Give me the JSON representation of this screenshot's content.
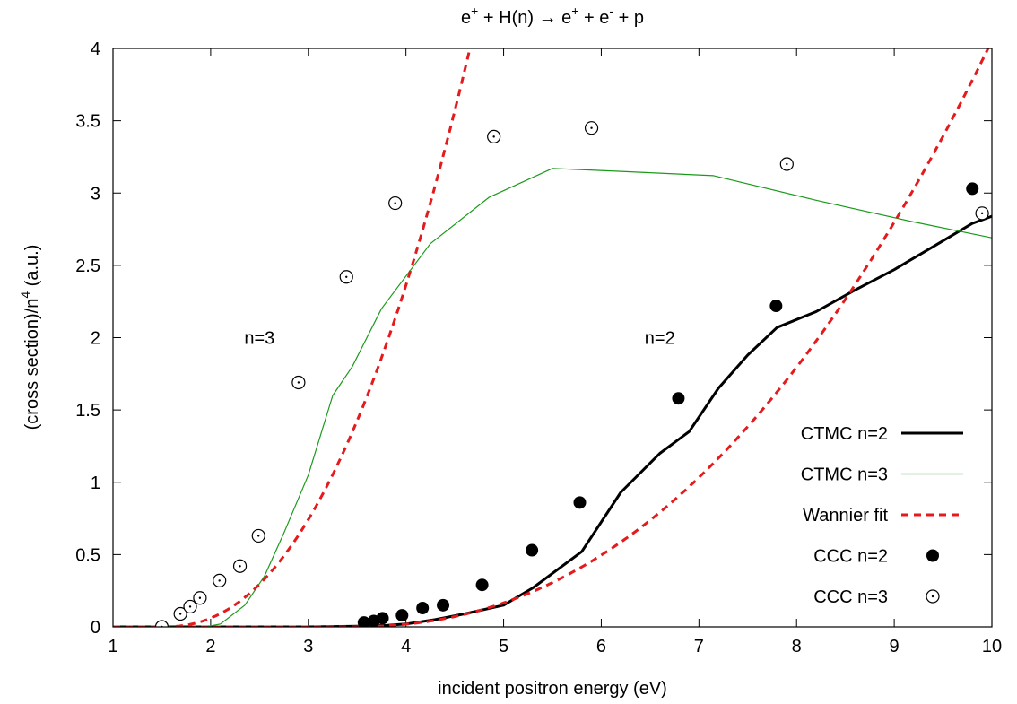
{
  "chart_data": {
    "type": "scatter",
    "title": {
      "base": "e",
      "sup1": "+",
      "part2": " + H(n) → e",
      "sup2": "+",
      "part3": " + e",
      "sup3": "-",
      "part4": " + p"
    },
    "xlabel": "incident positron energy (eV)",
    "ylabel": {
      "main": "(cross section)/n",
      "sup": "4",
      "tail": " (a.u.)"
    },
    "xlim": [
      1,
      10
    ],
    "ylim": [
      0,
      4
    ],
    "x_ticks": [
      "1",
      "2",
      "3",
      "4",
      "5",
      "6",
      "7",
      "8",
      "9",
      "10"
    ],
    "y_ticks": [
      "0",
      "0.5",
      "1",
      "1.5",
      "2",
      "2.5",
      "3",
      "3.5",
      "4"
    ],
    "grid": false,
    "legend_position": "bottom-right",
    "annotations": [
      {
        "text": "n=3",
        "x": 2.5,
        "y": 2.0
      },
      {
        "text": "n=2",
        "x": 6.6,
        "y": 2.0
      }
    ],
    "colors": {
      "ctmc_n2": "#000000",
      "ctmc_n3": "#1a9a1a",
      "wannier": "#e41a1c",
      "ccc": "#000000"
    },
    "series": [
      {
        "name": "CTMC n=2",
        "kind": "line",
        "color": "#000000",
        "width": 3,
        "x": [
          1.0,
          2.0,
          3.0,
          3.5,
          3.8,
          4.0,
          4.3,
          4.6,
          5.0,
          5.3,
          5.8,
          6.2,
          6.6,
          6.9,
          7.2,
          7.5,
          7.8,
          8.2,
          8.6,
          9.0,
          9.4,
          9.8,
          10.0
        ],
        "y": [
          0.0,
          0.0,
          0.0,
          0.005,
          0.01,
          0.02,
          0.05,
          0.09,
          0.15,
          0.27,
          0.52,
          0.93,
          1.2,
          1.35,
          1.65,
          1.88,
          2.07,
          2.18,
          2.33,
          2.47,
          2.63,
          2.79,
          2.84
        ]
      },
      {
        "name": "CTMC n=3",
        "kind": "line",
        "color": "#1a9a1a",
        "width": 1.2,
        "x": [
          1.0,
          1.95,
          2.1,
          2.35,
          2.55,
          2.75,
          3.0,
          3.25,
          3.45,
          3.75,
          4.25,
          4.85,
          5.5,
          6.2,
          7.15,
          8.2,
          9.2,
          10.0
        ],
        "y": [
          0.0,
          0.0,
          0.02,
          0.15,
          0.35,
          0.65,
          1.05,
          1.6,
          1.8,
          2.2,
          2.65,
          2.97,
          3.17,
          3.15,
          3.12,
          2.95,
          2.8,
          2.69
        ]
      },
      {
        "name": "Wannier fit",
        "kind": "dashed",
        "color": "#e41a1c",
        "width": 3,
        "fits": [
          {
            "threshold": 1.51,
            "coef": 0.302,
            "exp": 2.255
          },
          {
            "threshold": 3.4,
            "coef": 0.0575,
            "exp": 2.255
          }
        ]
      },
      {
        "name": "CCC n=2",
        "kind": "points",
        "marker": "filled-circle",
        "x": [
          3.57,
          3.67,
          3.76,
          3.96,
          4.17,
          4.38,
          4.78,
          5.29,
          5.78,
          6.79,
          7.79,
          9.8
        ],
        "y": [
          0.03,
          0.04,
          0.06,
          0.08,
          0.13,
          0.15,
          0.29,
          0.53,
          0.86,
          1.58,
          2.22,
          3.03
        ]
      },
      {
        "name": "CCC n=3",
        "kind": "points",
        "marker": "open-circle-dot",
        "x": [
          1.5,
          1.69,
          1.79,
          1.89,
          2.09,
          2.3,
          2.49,
          2.9,
          3.39,
          3.89,
          4.9,
          5.9,
          7.9,
          9.9
        ],
        "y": [
          0.0,
          0.09,
          0.14,
          0.2,
          0.32,
          0.42,
          0.63,
          1.69,
          2.42,
          2.93,
          3.39,
          3.45,
          3.2,
          2.86
        ]
      }
    ]
  }
}
